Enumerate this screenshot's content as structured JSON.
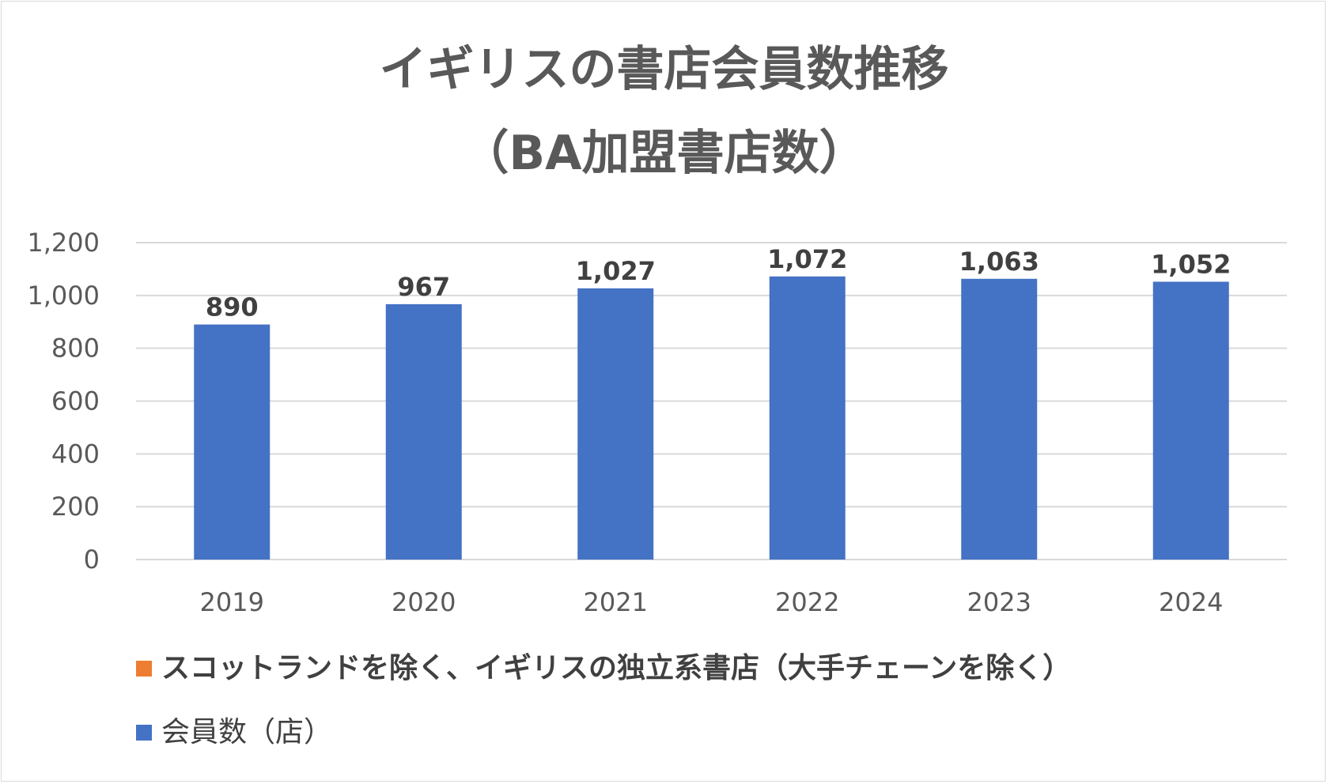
{
  "chart_data": {
    "type": "bar",
    "title": "イギリスの書店会員数推移",
    "subtitle": "（BA加盟書店数）",
    "xlabel": "",
    "ylabel": "",
    "categories": [
      "2019",
      "2020",
      "2021",
      "2022",
      "2023",
      "2024"
    ],
    "series": [
      {
        "name": "会員数（店）",
        "color": "#4472C4",
        "values": [
          890,
          967,
          1027,
          1072,
          1063,
          1052
        ],
        "data_labels": [
          "890",
          "967",
          "1,027",
          "1,072",
          "1,063",
          "1,052"
        ]
      }
    ],
    "ylim": [
      0,
      1200
    ],
    "yticks": [
      0,
      200,
      400,
      600,
      800,
      1000,
      1200
    ],
    "ytick_labels": [
      "0",
      "200",
      "400",
      "600",
      "800",
      "1,000",
      "1,200"
    ],
    "grid": true,
    "legend": {
      "position": "bottom",
      "entries": [
        {
          "label": "スコットランドを除く、イギリスの独立系書店（大手チェーンを除く）",
          "color": "#ED7D31"
        },
        {
          "label": "会員数（店）",
          "color": "#4472C4"
        }
      ]
    }
  }
}
